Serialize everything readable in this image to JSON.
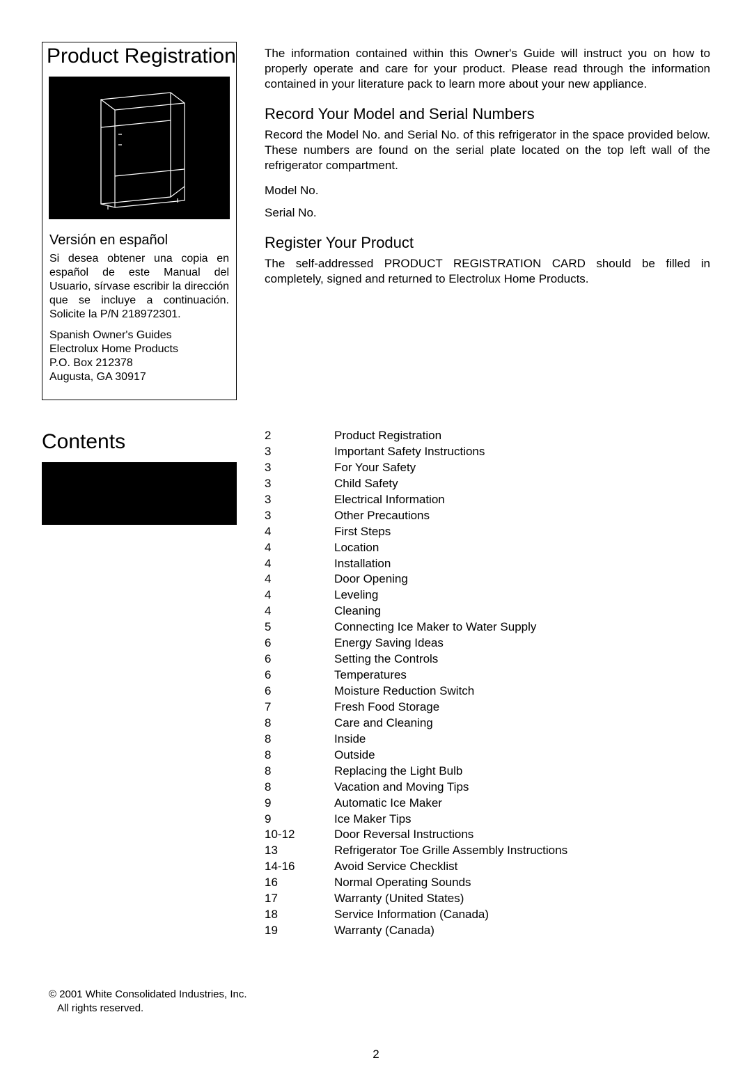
{
  "h1_registration": "Product Registration",
  "intro_text": "The information contained within this Owner's Guide  will instruct you on how to properly operate and care for your product. Please read through the information contained in your literature pack to learn more about your new appliance.",
  "record_heading": "Record Your Model and Serial Numbers",
  "record_text": "Record the Model No. and Serial No. of this refrigerator in the space provided below. These numbers are found on the serial plate located on the top left wall of the refrigerator compartment.",
  "model_label": "Model No.",
  "serial_label": "Serial No.",
  "register_heading": "Register Your Product",
  "register_text": "The self-addressed PRODUCT REGISTRATION CARD should be filled in completely, signed and returned to Electrolux Home Products.",
  "spanish_heading": "Versión en español",
  "spanish_text": "Si desea obtener una copia en español de este Manual del Usuario, sírvase escribir la dirección que se incluye a continuación. Solicite la P/N 218972301.",
  "spanish_addr1": "Spanish Owner's Guides",
  "spanish_addr2": "Electrolux Home Products",
  "spanish_addr3": "P.O. Box 212378",
  "spanish_addr4": "Augusta, GA 30917",
  "h1_contents": "Contents",
  "toc": [
    {
      "page": "2",
      "title": "Product Registration"
    },
    {
      "page": "3",
      "title": "Important Safety Instructions"
    },
    {
      "page": "3",
      "title": "For Your Safety"
    },
    {
      "page": "3",
      "title": "Child Safety"
    },
    {
      "page": "3",
      "title": "Electrical Information"
    },
    {
      "page": "3",
      "title": "Other Precautions"
    },
    {
      "page": "4",
      "title": "First Steps"
    },
    {
      "page": "4",
      "title": "Location"
    },
    {
      "page": "4",
      "title": "Installation"
    },
    {
      "page": "4",
      "title": "Door Opening"
    },
    {
      "page": "4",
      "title": "Leveling"
    },
    {
      "page": "4",
      "title": "Cleaning"
    },
    {
      "page": "5",
      "title": "Connecting Ice Maker to Water Supply"
    },
    {
      "page": "6",
      "title": "Energy Saving Ideas"
    },
    {
      "page": "6",
      "title": "Setting the Controls"
    },
    {
      "page": "6",
      "title": "Temperatures"
    },
    {
      "page": "6",
      "title": "Moisture Reduction Switch"
    },
    {
      "page": "7",
      "title": "Fresh Food Storage"
    },
    {
      "page": "8",
      "title": "Care and Cleaning"
    },
    {
      "page": "8",
      "title": "Inside"
    },
    {
      "page": "8",
      "title": "Outside"
    },
    {
      "page": "8",
      "title": "Replacing the Light Bulb"
    },
    {
      "page": "8",
      "title": "Vacation and Moving Tips"
    },
    {
      "page": "9",
      "title": "Automatic Ice Maker"
    },
    {
      "page": "9",
      "title": "Ice Maker Tips"
    },
    {
      "page": "10-12",
      "title": "Door Reversal Instructions"
    },
    {
      "page": "13",
      "title": "Refrigerator Toe Grille Assembly Instructions"
    },
    {
      "page": "14-16",
      "title": "Avoid Service Checklist"
    },
    {
      "page": "16",
      "title": "Normal Operating Sounds"
    },
    {
      "page": "17",
      "title": "Warranty (United States)"
    },
    {
      "page": "18",
      "title": "Service Information (Canada)"
    },
    {
      "page": "19",
      "title": "Warranty (Canada)"
    }
  ],
  "copyright1": "© 2001 White Consolidated Industries, Inc.",
  "copyright2": "All rights reserved.",
  "page_number": "2",
  "colors": {
    "text": "#000000",
    "bg": "#ffffff"
  }
}
